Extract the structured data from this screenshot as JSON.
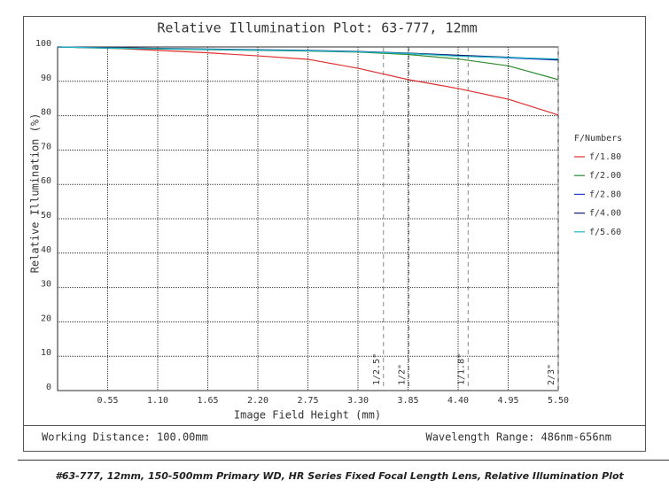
{
  "chart_data": {
    "type": "line",
    "title": "Relative Illumination Plot: 63-777, 12mm",
    "x_label": "Image Field Height (mm)",
    "y_label": "Relative Illumination (%)",
    "x": [
      0,
      0.55,
      1.1,
      1.65,
      2.2,
      2.75,
      3.3,
      3.85,
      4.4,
      4.95,
      5.5
    ],
    "series": [
      {
        "name": "f/1.80",
        "color": "#e03030",
        "values": [
          100,
          99.7,
          99.0,
          98.3,
          97.4,
          96.4,
          93.8,
          90.5,
          87.9,
          84.8,
          80.2
        ]
      },
      {
        "name": "f/2.00",
        "color": "#2e8b2e",
        "values": [
          100,
          99.6,
          99.4,
          99.2,
          99.0,
          98.8,
          98.5,
          97.8,
          96.5,
          94.5,
          90.5
        ]
      },
      {
        "name": "f/2.80",
        "color": "#2040d0",
        "values": [
          100,
          99.7,
          99.5,
          99.3,
          99.1,
          98.9,
          98.6,
          98.1,
          97.4,
          96.8,
          96.2
        ]
      },
      {
        "name": "f/4.00",
        "color": "#101a70",
        "values": [
          100,
          99.8,
          99.6,
          99.4,
          99.2,
          99.0,
          98.7,
          98.2,
          97.6,
          97.0,
          96.3
        ]
      },
      {
        "name": "f/5.60",
        "color": "#20b8c8",
        "values": [
          100,
          99.7,
          99.5,
          99.3,
          99.1,
          98.9,
          98.6,
          98.1,
          97.3,
          96.9,
          96.5
        ]
      }
    ],
    "xlim": [
      0,
      5.5
    ],
    "ylim": [
      0,
      100
    ],
    "xticks": [
      0.55,
      {
        "value": 1.1,
        "label": "1.10"
      },
      1.65,
      {
        "value": 2.2,
        "label": "2.20"
      },
      2.75,
      {
        "value": 3.3,
        "label": "3.30"
      },
      3.85,
      {
        "value": 4.4,
        "label": "4.40"
      },
      4.95,
      {
        "value": 5.5,
        "label": "5.50"
      }
    ],
    "yticks": [
      0,
      10,
      20,
      30,
      40,
      50,
      60,
      70,
      80,
      90,
      100
    ],
    "grid": true,
    "legend_title": "F/Numbers",
    "annotations": [
      {
        "label": "1/2.5\"",
        "x": 3.58
      },
      {
        "label": "1/2\"",
        "x": 3.86
      },
      {
        "label": "1/1.8\"",
        "x": 4.51
      },
      {
        "label": "2/3\"",
        "x": 5.5
      }
    ]
  },
  "footer": {
    "working_distance": "Working Distance: 100.00mm",
    "wavelength": "Wavelength Range: 486nm-656nm"
  },
  "caption": "#63-777, 12mm, 150-500mm Primary WD, HR Series Fixed Focal Length Lens, Relative Illumination Plot"
}
